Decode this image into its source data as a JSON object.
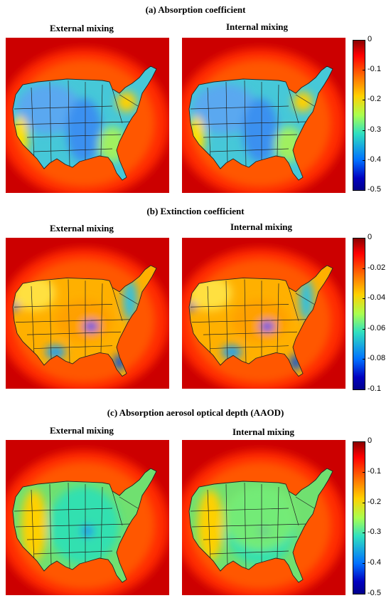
{
  "sections": [
    {
      "title": "(a) Absorption coefficient",
      "left_title": "External mixing",
      "right_title": "Internal mixing",
      "colorbar_ticks": [
        "0",
        "-0.1",
        "-0.2",
        "-0.3",
        "-0.4",
        "-0.5"
      ]
    },
    {
      "title": "(b) Extinction coefficient",
      "left_title": "External mixing",
      "right_title": "Internal mixing",
      "colorbar_ticks": [
        "0",
        "-0.02",
        "-0.04",
        "-0.06",
        "-0.08",
        "-0.1"
      ]
    },
    {
      "title": "(c) Absorption aerosol optical depth (AAOD)",
      "left_title": "External mixing",
      "right_title": "Internal mixing",
      "colorbar_ticks": [
        "0",
        "-0.1",
        "-0.2",
        "-0.3",
        "-0.4",
        "-0.5"
      ]
    }
  ],
  "colors": {
    "background_field": "#d00000",
    "low_value": "#00008b",
    "high_value": "#8b0000"
  }
}
